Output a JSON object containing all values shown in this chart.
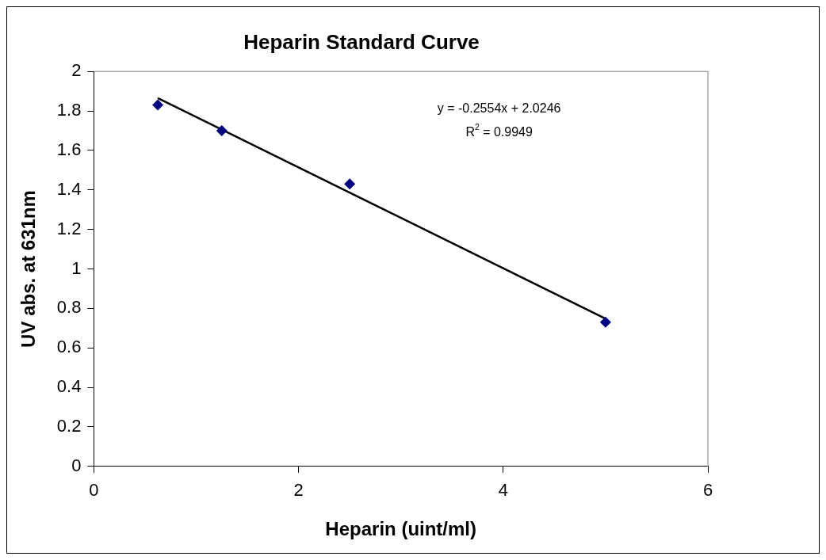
{
  "chart_data": {
    "type": "scatter",
    "title": "Heparin Standard Curve",
    "xlabel": "Heparin (uint/ml)",
    "ylabel": "UV abs. at 631nm",
    "x": [
      0.625,
      1.25,
      2.5,
      5
    ],
    "series": [
      {
        "color": "#000080",
        "values": [
          1.83,
          1.7,
          1.43,
          0.73
        ],
        "marker": "diamond"
      },
      {
        "type": "line",
        "color": "#000000",
        "x": [
          0.625,
          5
        ],
        "values": [
          1.865,
          0.748
        ],
        "marker": "none",
        "line_style": "solid"
      }
    ],
    "xlim": [
      0,
      6
    ],
    "xticks": [
      0,
      2,
      4,
      6
    ],
    "ylim": [
      0,
      2
    ],
    "yticks": [
      0,
      0.2,
      0.4,
      0.6,
      0.8,
      1,
      1.2,
      1.4,
      1.6,
      1.8,
      2
    ],
    "grid": false,
    "legend": false,
    "annotations": [
      "y = -0.2554x + 2.0246",
      "R$^{2}$ = 0.9949"
    ]
  }
}
